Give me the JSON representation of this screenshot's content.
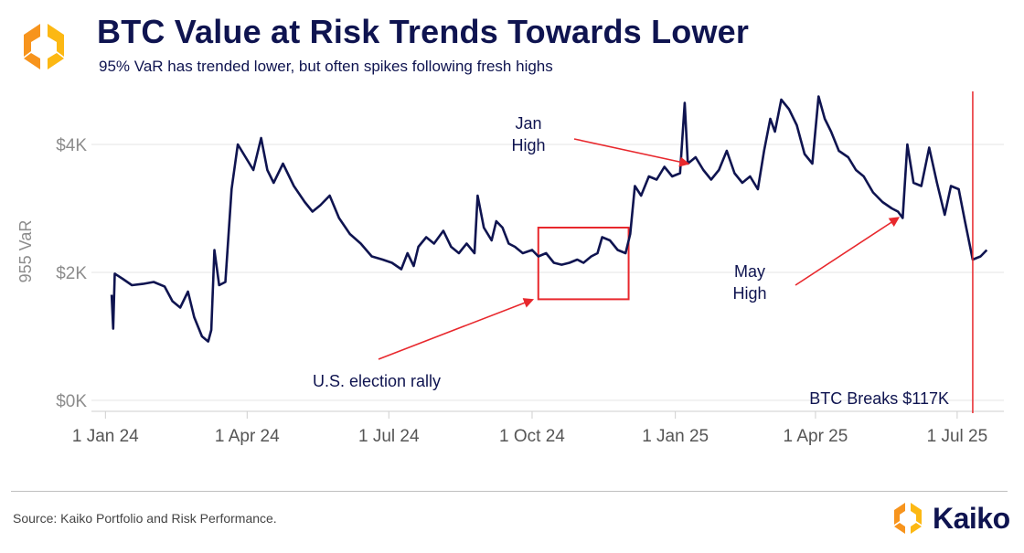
{
  "header": {
    "title": "BTC Value at Risk Trends Towards Lower",
    "subtitle": "95% VaR has trended lower, but often spikes following fresh highs"
  },
  "footer": {
    "source": "Source: Kaiko Portfolio and Risk Performance.",
    "brand": "Kaiko"
  },
  "colors": {
    "line": "#0f1450",
    "accent": "#e8282d",
    "logo_orange": "#f7941d",
    "logo_yellow": "#fcb813",
    "grid": "#e6e6e6",
    "axis_text": "#8c8c8c"
  },
  "chart_data": {
    "type": "line",
    "title": "BTC Value at Risk Trends Towards Lower",
    "xlabel": "",
    "ylabel": "955 VaR",
    "ylim": [
      0,
      5000
    ],
    "xlim": [
      "2023-12-23",
      "2025-07-31"
    ],
    "y_ticks": [
      {
        "value": 0,
        "label": "$0K"
      },
      {
        "value": 2000,
        "label": "$2K"
      },
      {
        "value": 4000,
        "label": "$4K"
      }
    ],
    "x_ticks": [
      {
        "date": "2024-01-01",
        "label": "1 Jan 24"
      },
      {
        "date": "2024-04-01",
        "label": "1 Apr 24"
      },
      {
        "date": "2024-07-01",
        "label": "1 Jul 24"
      },
      {
        "date": "2024-10-01",
        "label": "1 Oct 24"
      },
      {
        "date": "2025-01-01",
        "label": "1 Jan 25"
      },
      {
        "date": "2025-04-01",
        "label": "1 Apr 25"
      },
      {
        "date": "2025-07-01",
        "label": "1 Jul 25"
      }
    ],
    "series": [
      {
        "name": "95% VaR",
        "points": [
          [
            "2024-01-05",
            1650
          ],
          [
            "2024-01-06",
            1120
          ],
          [
            "2024-01-07",
            1980
          ],
          [
            "2024-01-12",
            1900
          ],
          [
            "2024-01-18",
            1800
          ],
          [
            "2024-01-25",
            1820
          ],
          [
            "2024-02-01",
            1850
          ],
          [
            "2024-02-08",
            1780
          ],
          [
            "2024-02-13",
            1550
          ],
          [
            "2024-02-18",
            1450
          ],
          [
            "2024-02-23",
            1700
          ],
          [
            "2024-02-27",
            1300
          ],
          [
            "2024-03-03",
            1000
          ],
          [
            "2024-03-07",
            920
          ],
          [
            "2024-03-09",
            1100
          ],
          [
            "2024-03-11",
            2350
          ],
          [
            "2024-03-14",
            1800
          ],
          [
            "2024-03-18",
            1850
          ],
          [
            "2024-03-22",
            3300
          ],
          [
            "2024-03-26",
            4000
          ],
          [
            "2024-03-31",
            3800
          ],
          [
            "2024-04-05",
            3600
          ],
          [
            "2024-04-10",
            4100
          ],
          [
            "2024-04-14",
            3600
          ],
          [
            "2024-04-18",
            3400
          ],
          [
            "2024-04-24",
            3700
          ],
          [
            "2024-05-01",
            3350
          ],
          [
            "2024-05-08",
            3100
          ],
          [
            "2024-05-13",
            2950
          ],
          [
            "2024-05-18",
            3050
          ],
          [
            "2024-05-24",
            3200
          ],
          [
            "2024-05-30",
            2850
          ],
          [
            "2024-06-06",
            2600
          ],
          [
            "2024-06-13",
            2450
          ],
          [
            "2024-06-20",
            2250
          ],
          [
            "2024-06-27",
            2200
          ],
          [
            "2024-07-03",
            2150
          ],
          [
            "2024-07-09",
            2050
          ],
          [
            "2024-07-13",
            2300
          ],
          [
            "2024-07-17",
            2100
          ],
          [
            "2024-07-20",
            2400
          ],
          [
            "2024-07-25",
            2550
          ],
          [
            "2024-07-30",
            2450
          ],
          [
            "2024-08-05",
            2650
          ],
          [
            "2024-08-10",
            2400
          ],
          [
            "2024-08-15",
            2300
          ],
          [
            "2024-08-20",
            2450
          ],
          [
            "2024-08-25",
            2300
          ],
          [
            "2024-08-27",
            3200
          ],
          [
            "2024-08-31",
            2700
          ],
          [
            "2024-09-05",
            2500
          ],
          [
            "2024-09-08",
            2800
          ],
          [
            "2024-09-12",
            2700
          ],
          [
            "2024-09-16",
            2450
          ],
          [
            "2024-09-20",
            2400
          ],
          [
            "2024-09-25",
            2300
          ],
          [
            "2024-10-01",
            2350
          ],
          [
            "2024-10-05",
            2250
          ],
          [
            "2024-10-10",
            2300
          ],
          [
            "2024-10-15",
            2150
          ],
          [
            "2024-10-20",
            2120
          ],
          [
            "2024-10-25",
            2150
          ],
          [
            "2024-10-30",
            2200
          ],
          [
            "2024-11-03",
            2150
          ],
          [
            "2024-11-08",
            2250
          ],
          [
            "2024-11-12",
            2300
          ],
          [
            "2024-11-15",
            2550
          ],
          [
            "2024-11-20",
            2500
          ],
          [
            "2024-11-25",
            2350
          ],
          [
            "2024-11-30",
            2300
          ],
          [
            "2024-12-03",
            2600
          ],
          [
            "2024-12-06",
            3350
          ],
          [
            "2024-12-10",
            3200
          ],
          [
            "2024-12-15",
            3500
          ],
          [
            "2024-12-20",
            3450
          ],
          [
            "2024-12-25",
            3650
          ],
          [
            "2024-12-30",
            3500
          ],
          [
            "2025-01-04",
            3550
          ],
          [
            "2025-01-07",
            4650
          ],
          [
            "2025-01-09",
            3700
          ],
          [
            "2025-01-14",
            3800
          ],
          [
            "2025-01-19",
            3600
          ],
          [
            "2025-01-24",
            3450
          ],
          [
            "2025-01-29",
            3600
          ],
          [
            "2025-02-03",
            3900
          ],
          [
            "2025-02-08",
            3550
          ],
          [
            "2025-02-13",
            3400
          ],
          [
            "2025-02-18",
            3500
          ],
          [
            "2025-02-23",
            3300
          ],
          [
            "2025-02-27",
            3900
          ],
          [
            "2025-03-03",
            4400
          ],
          [
            "2025-03-06",
            4200
          ],
          [
            "2025-03-10",
            4700
          ],
          [
            "2025-03-15",
            4550
          ],
          [
            "2025-03-20",
            4300
          ],
          [
            "2025-03-25",
            3850
          ],
          [
            "2025-03-30",
            3700
          ],
          [
            "2025-04-03",
            4750
          ],
          [
            "2025-04-07",
            4400
          ],
          [
            "2025-04-11",
            4200
          ],
          [
            "2025-04-16",
            3900
          ],
          [
            "2025-04-22",
            3800
          ],
          [
            "2025-04-27",
            3600
          ],
          [
            "2025-05-02",
            3500
          ],
          [
            "2025-05-08",
            3250
          ],
          [
            "2025-05-14",
            3100
          ],
          [
            "2025-05-20",
            3000
          ],
          [
            "2025-05-24",
            2950
          ],
          [
            "2025-05-27",
            2850
          ],
          [
            "2025-05-30",
            4000
          ],
          [
            "2025-06-03",
            3400
          ],
          [
            "2025-06-08",
            3350
          ],
          [
            "2025-06-13",
            3950
          ],
          [
            "2025-06-18",
            3400
          ],
          [
            "2025-06-23",
            2900
          ],
          [
            "2025-06-27",
            3350
          ],
          [
            "2025-07-02",
            3300
          ],
          [
            "2025-07-06",
            2800
          ],
          [
            "2025-07-11",
            2200
          ],
          [
            "2025-07-16",
            2250
          ],
          [
            "2025-07-20",
            2350
          ]
        ]
      }
    ],
    "annotations": [
      {
        "text_lines": [
          "Jan",
          "High"
        ],
        "arrow_to": [
          "2025-01-09",
          3700
        ]
      },
      {
        "text_lines": [
          "May",
          "High"
        ],
        "arrow_to": [
          "2025-05-24",
          2850
        ]
      },
      {
        "text_lines": [
          "U.S. election rally"
        ],
        "arrow_to": [
          "2024-10-01",
          1570
        ]
      },
      {
        "text_lines": [
          "BTC Breaks $117K"
        ],
        "vline_date": "2025-07-11"
      }
    ],
    "highlight_box": {
      "x_range": [
        "2024-10-05",
        "2024-12-02"
      ],
      "y_range": [
        1580,
        2700
      ]
    }
  }
}
